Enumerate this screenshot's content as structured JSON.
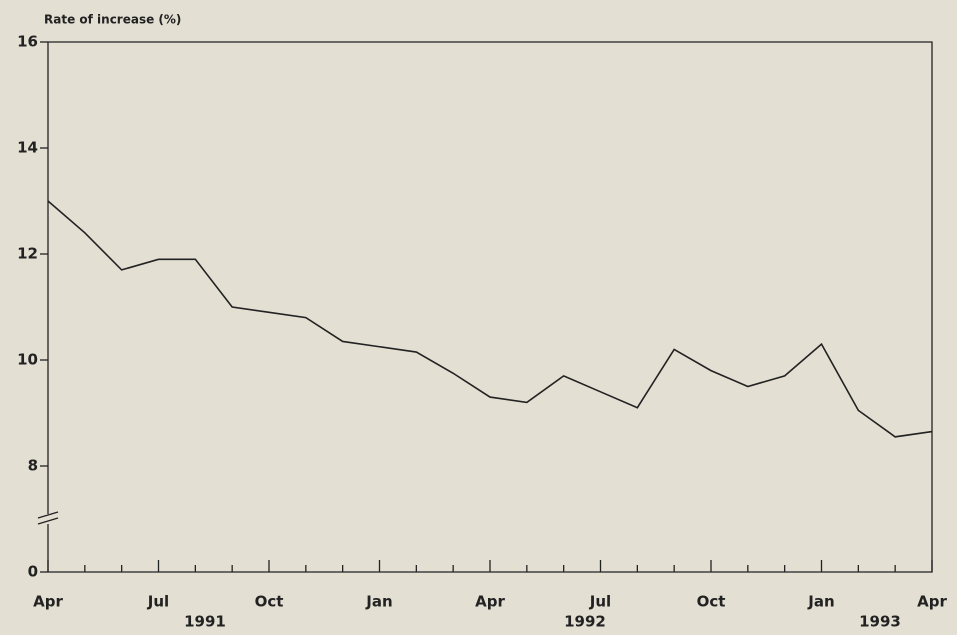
{
  "chart_data": {
    "type": "line",
    "y_axis_label": "Rate of increase (%)",
    "categories": [
      "Apr",
      null,
      null,
      "Jul",
      null,
      null,
      "Oct",
      null,
      null,
      "Jan",
      null,
      null,
      "Apr",
      null,
      null,
      "Jul",
      null,
      null,
      "Oct",
      null,
      null,
      "Jan",
      null,
      null,
      "Apr"
    ],
    "x_groups": [
      "1991",
      "1992",
      "1993"
    ],
    "series": [
      {
        "color": "#222222",
        "values": [
          13.0,
          12.4,
          11.7,
          11.9,
          11.9,
          11.0,
          10.9,
          10.8,
          10.35,
          10.25,
          10.15,
          9.75,
          9.3,
          9.2,
          9.7,
          9.4,
          9.1,
          10.2,
          9.8,
          9.5,
          9.7,
          10.3,
          9.05,
          8.55,
          8.65
        ]
      }
    ],
    "ylim": [
      0,
      16
    ],
    "yticks": [
      0,
      8,
      10,
      12,
      14,
      16
    ],
    "axis_break": true,
    "grid": false
  }
}
